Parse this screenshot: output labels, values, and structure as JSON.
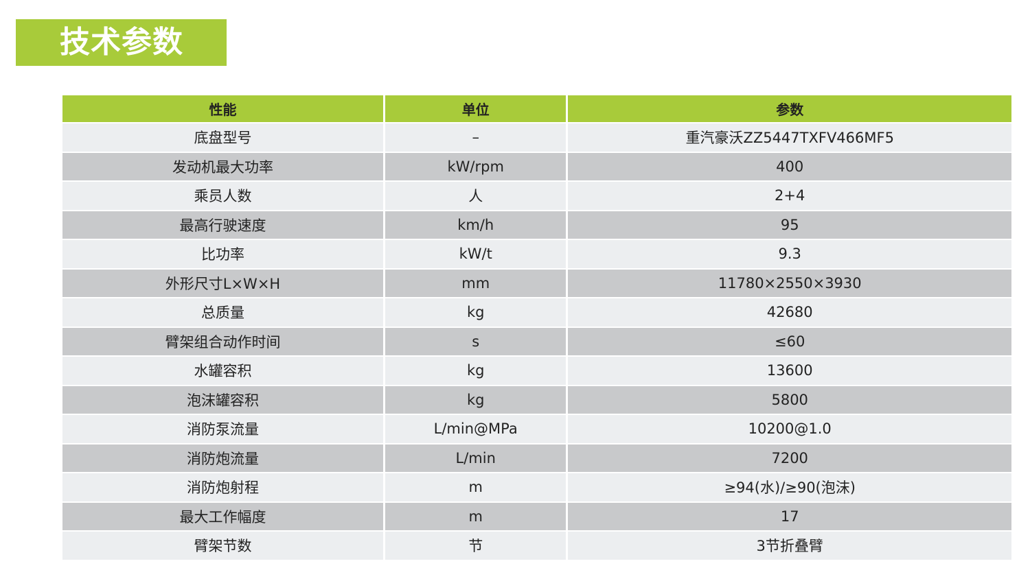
{
  "title": "技术参数",
  "colors": {
    "accent": "#a8cb3a",
    "row_light": "#eceef0",
    "row_dark": "#c8c9cb"
  },
  "table": {
    "headers": [
      "性能",
      "单位",
      "参数"
    ],
    "rows": [
      [
        "底盘型号",
        "–",
        "重汽豪沃ZZ5447TXFV466MF5"
      ],
      [
        "发动机最大功率",
        "kW/rpm",
        "400"
      ],
      [
        "乘员人数",
        "人",
        "2+4"
      ],
      [
        "最高行驶速度",
        "km/h",
        "95"
      ],
      [
        "比功率",
        "kW/t",
        "9.3"
      ],
      [
        "外形尺寸L×W×H",
        "mm",
        "11780×2550×3930"
      ],
      [
        "总质量",
        "kg",
        "42680"
      ],
      [
        "臂架组合动作时间",
        "s",
        "≤60"
      ],
      [
        "水罐容积",
        "kg",
        "13600"
      ],
      [
        "泡沫罐容积",
        "kg",
        "5800"
      ],
      [
        "消防泵流量",
        "L/min@MPa",
        "10200@1.0"
      ],
      [
        "消防炮流量",
        "L/min",
        "7200"
      ],
      [
        "消防炮射程",
        "m",
        "≥94(水)/≥90(泡沫)"
      ],
      [
        "最大工作幅度",
        "m",
        "17"
      ],
      [
        "臂架节数",
        "节",
        "3节折叠臂"
      ]
    ]
  }
}
